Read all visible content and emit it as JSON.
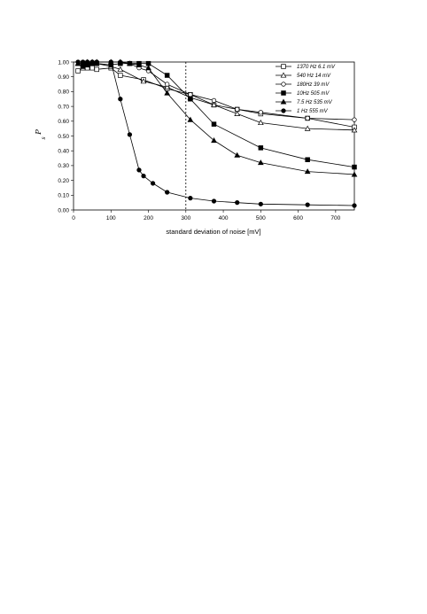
{
  "chart_data": {
    "type": "line",
    "xlabel": "standard deviation of noise [mV]",
    "ylabel": "P",
    "ylabel_sub": "s",
    "xlim": [
      0,
      750
    ],
    "ylim": [
      0,
      1.0
    ],
    "xticks": [
      "0",
      "100",
      "200",
      "300",
      "400",
      "500",
      "600",
      "700"
    ],
    "xtick_values": [
      0,
      100,
      200,
      300,
      400,
      500,
      600,
      700
    ],
    "yticks": [
      "0.00",
      "0.10",
      "0.20",
      "0.30",
      "0.40",
      "0.50",
      "0.60",
      "0.70",
      "0.80",
      "0.90",
      "1.00"
    ],
    "ytick_values": [
      0,
      0.1,
      0.2,
      0.3,
      0.4,
      0.5,
      0.6,
      0.7,
      0.8,
      0.9,
      1.0
    ],
    "threshold_x": 300,
    "legend_position": "top-right",
    "series": [
      {
        "name": "1370 Hz 6.1 mV",
        "marker": "square-open",
        "x": [
          12,
          25,
          37,
          50,
          62,
          100,
          125,
          187,
          250,
          312,
          375,
          437,
          500,
          625,
          750
        ],
        "y": [
          0.94,
          0.96,
          0.96,
          0.96,
          0.95,
          0.96,
          0.91,
          0.88,
          0.82,
          0.78,
          0.71,
          0.68,
          0.65,
          0.62,
          0.56
        ]
      },
      {
        "name": "540 Hz 14 mV",
        "marker": "triangle-open",
        "x": [
          12,
          25,
          37,
          50,
          62,
          100,
          125,
          187,
          250,
          312,
          375,
          437,
          500,
          625,
          750
        ],
        "y": [
          0.99,
          0.99,
          0.99,
          0.99,
          0.99,
          0.97,
          0.95,
          0.87,
          0.83,
          0.76,
          0.71,
          0.65,
          0.59,
          0.55,
          0.54
        ]
      },
      {
        "name": "180Hz 39 mV",
        "marker": "circle-open",
        "x": [
          12,
          25,
          37,
          50,
          62,
          100,
          125,
          150,
          175,
          200,
          250,
          312,
          375,
          437,
          500,
          625,
          750
        ],
        "y": [
          1.0,
          1.0,
          1.0,
          1.0,
          1.0,
          1.0,
          1.0,
          0.99,
          0.96,
          0.94,
          0.85,
          0.78,
          0.74,
          0.68,
          0.66,
          0.62,
          0.61
        ]
      },
      {
        "name": "10Hz 505 mV",
        "marker": "square-filled",
        "x": [
          25,
          37,
          50,
          62,
          100,
          125,
          150,
          175,
          200,
          250,
          312,
          375,
          500,
          625,
          750
        ],
        "y": [
          0.97,
          0.98,
          0.99,
          0.99,
          0.98,
          0.99,
          0.99,
          0.99,
          0.99,
          0.91,
          0.75,
          0.58,
          0.42,
          0.34,
          0.29
        ]
      },
      {
        "name": "7.5 Hz 535 mV",
        "marker": "triangle-filled",
        "x": [
          12,
          25,
          37,
          50,
          62,
          100,
          125,
          150,
          175,
          200,
          250,
          312,
          375,
          437,
          500,
          625,
          750
        ],
        "y": [
          0.99,
          0.99,
          1.0,
          1.0,
          1.0,
          1.0,
          1.0,
          0.99,
          0.98,
          0.96,
          0.79,
          0.61,
          0.47,
          0.37,
          0.32,
          0.26,
          0.24
        ]
      },
      {
        "name": "1 Hz 555 mV",
        "marker": "circle-filled",
        "x": [
          12,
          25,
          37,
          50,
          62,
          100,
          125,
          150,
          175,
          187,
          212,
          250,
          312,
          375,
          437,
          500,
          625,
          750
        ],
        "y": [
          1.0,
          1.0,
          1.0,
          1.0,
          1.0,
          1.0,
          0.75,
          0.51,
          0.27,
          0.23,
          0.18,
          0.12,
          0.08,
          0.06,
          0.05,
          0.04,
          0.035,
          0.03
        ]
      }
    ]
  }
}
